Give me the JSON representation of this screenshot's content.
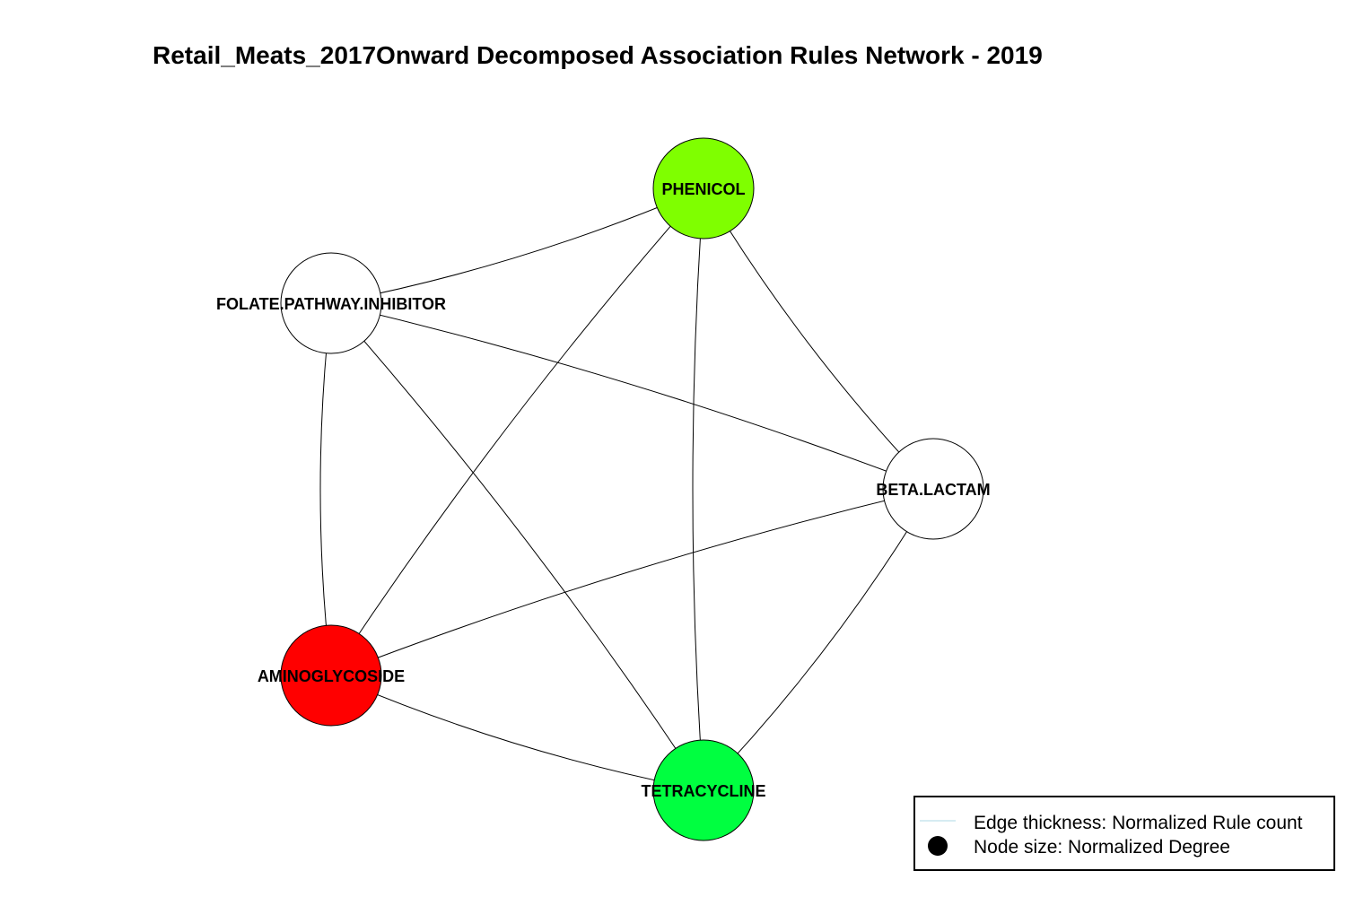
{
  "title": "Retail_Meats_2017Onward Decomposed Association Rules Network - 2019",
  "nodes": [
    {
      "id": "PHENICOL",
      "label": "PHENICOL",
      "color": "#7FFF00"
    },
    {
      "id": "FOLATE",
      "label": "FOLATE.PATHWAY.INHIBITOR",
      "color": "#FFFFFF"
    },
    {
      "id": "BETA",
      "label": "BETA.LACTAM",
      "color": "#FFFFFF"
    },
    {
      "id": "AMINO",
      "label": "AMINOGLYCOSIDE",
      "color": "#FF0000"
    },
    {
      "id": "TETRA",
      "label": "TETRACYCLINE",
      "color": "#00FF40"
    }
  ],
  "edges": [
    {
      "from": "FOLATE",
      "to": "PHENICOL"
    },
    {
      "from": "PHENICOL",
      "to": "AMINO"
    },
    {
      "from": "PHENICOL",
      "to": "TETRA"
    },
    {
      "from": "PHENICOL",
      "to": "BETA"
    },
    {
      "from": "FOLATE",
      "to": "BETA"
    },
    {
      "from": "FOLATE",
      "to": "AMINO"
    },
    {
      "from": "FOLATE",
      "to": "TETRA"
    },
    {
      "from": "BETA",
      "to": "AMINO"
    },
    {
      "from": "BETA",
      "to": "TETRA"
    },
    {
      "from": "AMINO",
      "to": "TETRA"
    }
  ],
  "legend": {
    "edge_label": "Edge thickness: Normalized Rule count",
    "node_label": "Node size: Normalized Degree",
    "edge_color": "#ADD8E6",
    "node_color": "#000000"
  }
}
